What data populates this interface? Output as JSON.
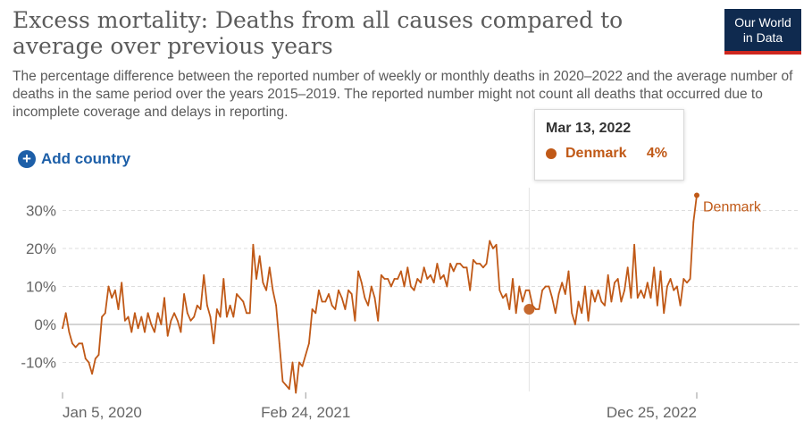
{
  "title": "Excess mortality: Deaths from all causes compared to average over previous years",
  "subtitle": "The percentage difference between the reported number of weekly or monthly deaths in 2020–2022 and the average number of deaths in the same period over the years 2015–2019. The reported number might not count all deaths that occurred due to incomplete coverage and delays in reporting.",
  "logo": {
    "line1": "Our World",
    "line2": "in Data"
  },
  "add_country_label": "Add country",
  "tooltip": {
    "date": "Mar 13, 2022",
    "series": "Denmark",
    "value": "4%",
    "color": "#c05917"
  },
  "colors": {
    "series": "#c05917",
    "grid": "#dddddd",
    "text": "#666666"
  },
  "chart_data": {
    "type": "line",
    "series": [
      {
        "name": "Denmark",
        "color": "#c05917",
        "values": [
          -1,
          3,
          -2,
          -5,
          -6,
          -5,
          -5,
          -9,
          -10,
          -13,
          -9,
          -8,
          2,
          3,
          10,
          7,
          9,
          4,
          11,
          1,
          2,
          -2,
          3,
          -1,
          2,
          -2,
          3,
          0,
          -2,
          3,
          0,
          7,
          -3,
          1,
          3,
          1,
          -2,
          8,
          3,
          1,
          2,
          5,
          4,
          13,
          5,
          2,
          -5,
          4,
          2,
          12,
          2,
          5,
          2,
          8,
          7,
          6,
          3,
          3,
          21,
          12,
          18,
          11,
          9,
          15,
          9,
          5,
          -5,
          -15,
          -16,
          -17,
          -10,
          -18,
          -10,
          -11,
          -8,
          -5,
          4,
          3,
          9,
          6,
          6,
          8,
          5,
          4,
          9,
          7,
          4,
          9,
          8,
          1,
          14,
          11,
          7,
          5,
          10,
          7,
          1,
          13,
          12,
          12,
          10,
          12,
          12,
          14,
          10,
          15,
          10,
          9,
          12,
          11,
          15,
          12,
          13,
          11,
          16,
          12,
          13,
          10,
          16,
          14,
          16,
          16,
          15,
          15,
          9,
          17,
          16,
          16,
          15,
          16,
          22,
          20,
          21,
          9,
          7,
          8,
          4,
          12,
          3,
          10,
          6,
          9,
          9,
          5,
          4,
          4,
          9,
          10,
          10,
          7,
          3,
          8,
          11,
          8,
          14,
          3,
          0,
          6,
          3,
          10,
          1,
          9,
          6,
          9,
          6,
          5,
          13,
          6,
          11,
          12,
          6,
          9,
          15,
          7,
          21,
          7,
          9,
          7,
          11,
          7,
          15,
          5,
          14,
          3,
          10,
          12,
          9,
          10,
          5,
          12,
          11,
          12,
          27,
          34
        ]
      }
    ],
    "x_tick_labels": [
      "Jan 5, 2020",
      "Feb 24, 2021",
      "Dec 25, 2022"
    ],
    "y_tick_labels": [
      "-10%",
      "0%",
      "10%",
      "20%",
      "30%"
    ],
    "y_ticks": [
      -10,
      0,
      10,
      20,
      30
    ],
    "ylim": [
      -18,
      36
    ],
    "highlight": {
      "label": "Mar 13, 2022",
      "value": 4
    },
    "end_label": "Denmark",
    "grid": true,
    "legend": "end-of-line label"
  }
}
